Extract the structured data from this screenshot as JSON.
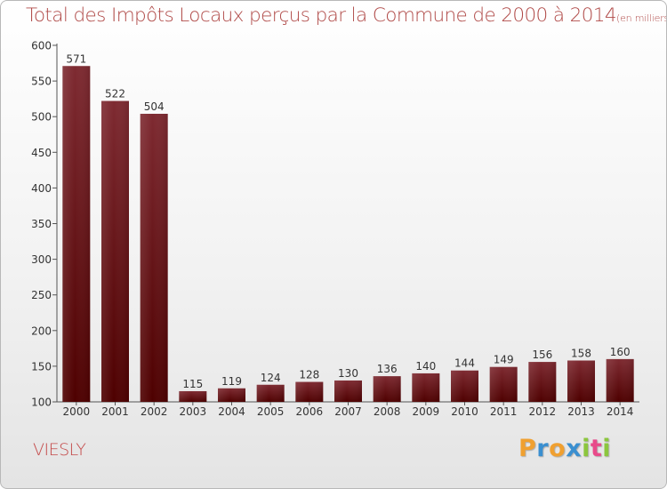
{
  "title": "Total des Impôts Locaux perçus par la Commune de 2000 à 2014",
  "title_unit": "(en milliers d'€)",
  "commune": "VIESLY",
  "logo": {
    "text": "Proxiti",
    "letters": [
      "P",
      "r",
      "o",
      "x",
      "i",
      "t",
      "i"
    ],
    "colors": [
      "#f0a030",
      "#3a8fd0",
      "#f0a030",
      "#3a8fd0",
      "#8cc63e",
      "#e84a8a",
      "#8cc63e"
    ]
  },
  "colors": {
    "bar_top": "#7e2a31",
    "bar_bottom": "#4e0000",
    "axis": "#555555",
    "title": "#b04a48",
    "commune": "#c44a4a"
  },
  "chart_data": {
    "type": "bar",
    "title": "Total des Impôts Locaux perçus par la Commune de 2000 à 2014",
    "categories": [
      "2000",
      "2001",
      "2002",
      "2003",
      "2004",
      "2005",
      "2006",
      "2007",
      "2008",
      "2009",
      "2010",
      "2011",
      "2012",
      "2013",
      "2014"
    ],
    "values": [
      571,
      522,
      504,
      115,
      119,
      124,
      128,
      130,
      136,
      140,
      144,
      149,
      156,
      158,
      160
    ],
    "ylim": [
      100,
      600
    ],
    "yticks": [
      100,
      150,
      200,
      250,
      300,
      350,
      400,
      450,
      500,
      550,
      600
    ],
    "grid": false,
    "data_labels": true,
    "xlabel": "",
    "ylabel": ""
  }
}
